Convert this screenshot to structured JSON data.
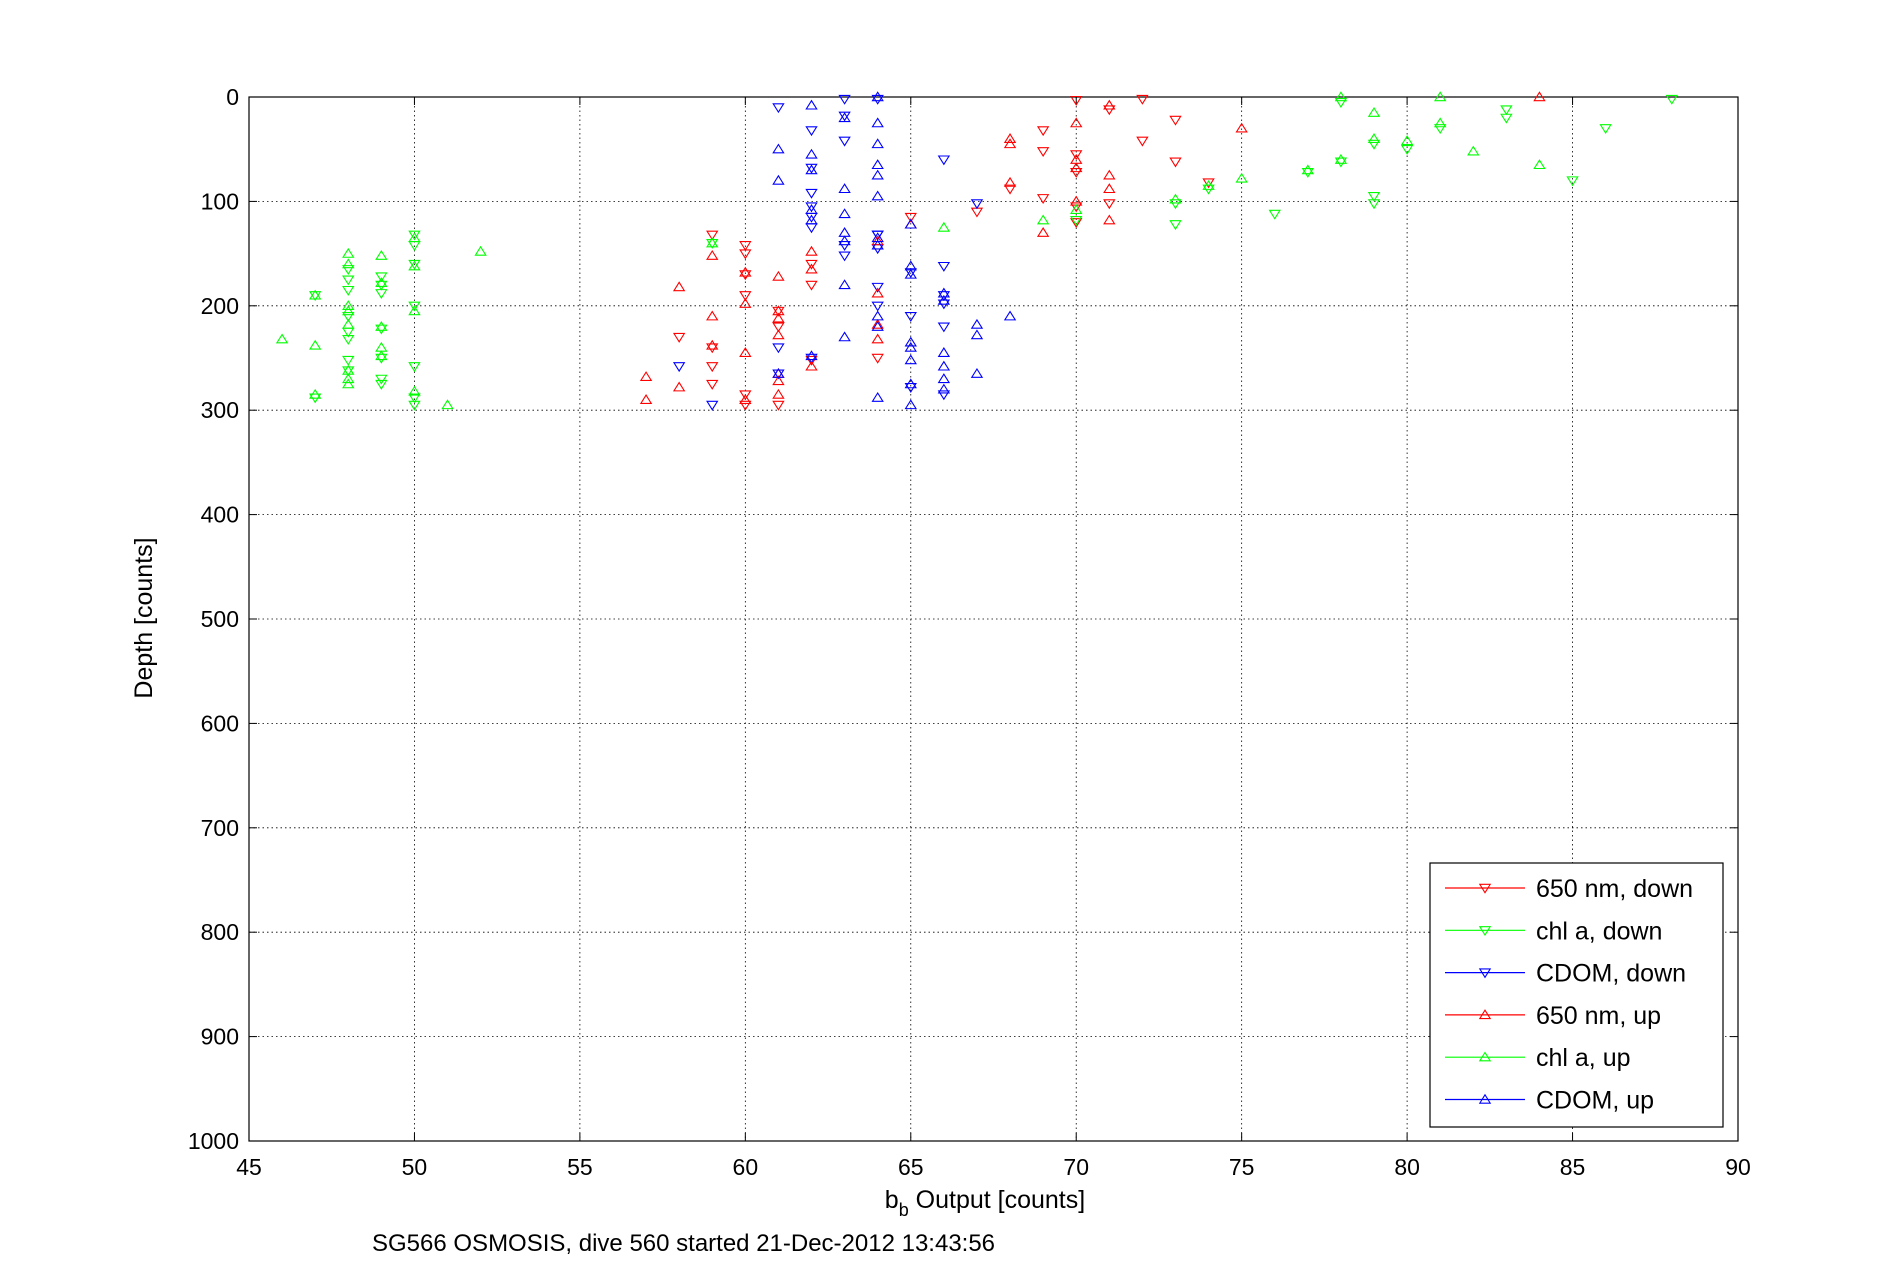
{
  "chart_data": {
    "type": "scatter",
    "title": "",
    "xlabel_main": "b",
    "xlabel_sub": "b",
    "xlabel_rest": " Output [counts]",
    "ylabel": "Depth [counts]",
    "caption": "SG566 OSMOSIS, dive 560 started 21-Dec-2012 13:43:56",
    "xlim": [
      45,
      90
    ],
    "ylim": [
      0,
      1000
    ],
    "y_reversed": true,
    "grid": true,
    "legend_position": "bottom-right",
    "xticks": [
      "45",
      "50",
      "55",
      "60",
      "65",
      "70",
      "75",
      "80",
      "85",
      "90"
    ],
    "yticks": [
      "0",
      "100",
      "200",
      "300",
      "400",
      "500",
      "600",
      "700",
      "800",
      "900",
      "1000"
    ],
    "series": [
      {
        "name": "650 nm, down",
        "color": "#ff0000",
        "marker": "triangle-down",
        "points": [
          [
            72,
            2
          ],
          [
            71,
            12
          ],
          [
            70,
            3
          ],
          [
            73,
            22
          ],
          [
            72,
            42
          ],
          [
            69,
            32
          ],
          [
            73,
            62
          ],
          [
            69,
            52
          ],
          [
            70,
            55
          ],
          [
            70,
            72
          ],
          [
            74,
            82
          ],
          [
            68,
            88
          ],
          [
            69,
            97
          ],
          [
            70,
            105
          ],
          [
            71,
            102
          ],
          [
            67,
            110
          ],
          [
            70,
            120
          ],
          [
            65,
            115
          ],
          [
            59,
            132
          ],
          [
            60,
            142
          ],
          [
            60,
            150
          ],
          [
            62,
            160
          ],
          [
            60,
            170
          ],
          [
            62,
            180
          ],
          [
            60,
            190
          ],
          [
            61,
            205
          ],
          [
            61,
            220
          ],
          [
            59,
            240
          ],
          [
            64,
            250
          ],
          [
            59,
            258
          ],
          [
            59,
            275
          ],
          [
            60,
            285
          ],
          [
            60,
            295
          ],
          [
            61,
            295
          ],
          [
            62,
            252
          ],
          [
            58,
            230
          ]
        ]
      },
      {
        "name": "chl a, down",
        "color": "#00ff00",
        "marker": "triangle-down",
        "points": [
          [
            88,
            2
          ],
          [
            83,
            12
          ],
          [
            83,
            20
          ],
          [
            86,
            30
          ],
          [
            78,
            5
          ],
          [
            81,
            30
          ],
          [
            79,
            45
          ],
          [
            78,
            62
          ],
          [
            80,
            50
          ],
          [
            77,
            72
          ],
          [
            85,
            80
          ],
          [
            74,
            88
          ],
          [
            76,
            112
          ],
          [
            79,
            95
          ],
          [
            79,
            102
          ],
          [
            73,
            102
          ],
          [
            73,
            122
          ],
          [
            70,
            118
          ],
          [
            59,
            140
          ],
          [
            50,
            132
          ],
          [
            50,
            142
          ],
          [
            50,
            160
          ],
          [
            49,
            172
          ],
          [
            49,
            180
          ],
          [
            49,
            188
          ],
          [
            48,
            165
          ],
          [
            48,
            175
          ],
          [
            48,
            185
          ],
          [
            47,
            190
          ],
          [
            48,
            210
          ],
          [
            48,
            225
          ],
          [
            48,
            232
          ],
          [
            49,
            222
          ],
          [
            50,
            200
          ],
          [
            49,
            250
          ],
          [
            49,
            270
          ],
          [
            49,
            275
          ],
          [
            48,
            252
          ],
          [
            48,
            262
          ],
          [
            50,
            258
          ],
          [
            50,
            288
          ],
          [
            50,
            295
          ],
          [
            47,
            288
          ]
        ]
      },
      {
        "name": "CDOM, down",
        "color": "#0000ff",
        "marker": "triangle-down",
        "points": [
          [
            63,
            2
          ],
          [
            64,
            2
          ],
          [
            61,
            10
          ],
          [
            62,
            32
          ],
          [
            63,
            18
          ],
          [
            63,
            42
          ],
          [
            62,
            68
          ],
          [
            66,
            60
          ],
          [
            62,
            92
          ],
          [
            62,
            105
          ],
          [
            62,
            115
          ],
          [
            62,
            125
          ],
          [
            67,
            102
          ],
          [
            64,
            132
          ],
          [
            63,
            142
          ],
          [
            64,
            145
          ],
          [
            63,
            152
          ],
          [
            66,
            162
          ],
          [
            65,
            168
          ],
          [
            66,
            190
          ],
          [
            66,
            198
          ],
          [
            66,
            220
          ],
          [
            64,
            182
          ],
          [
            64,
            200
          ],
          [
            65,
            210
          ],
          [
            61,
            240
          ],
          [
            61,
            265
          ],
          [
            62,
            250
          ],
          [
            58,
            258
          ],
          [
            65,
            278
          ],
          [
            66,
            285
          ],
          [
            59,
            295
          ],
          [
            64,
            132
          ]
        ]
      },
      {
        "name": "650 nm, up",
        "color": "#ff0000",
        "marker": "triangle-up",
        "points": [
          [
            84,
            0
          ],
          [
            71,
            8
          ],
          [
            75,
            30
          ],
          [
            70,
            25
          ],
          [
            68,
            40
          ],
          [
            68,
            45
          ],
          [
            70,
            60
          ],
          [
            70,
            68
          ],
          [
            71,
            75
          ],
          [
            68,
            82
          ],
          [
            71,
            88
          ],
          [
            70,
            100
          ],
          [
            69,
            130
          ],
          [
            71,
            118
          ],
          [
            65,
            122
          ],
          [
            62,
            148
          ],
          [
            60,
            168
          ],
          [
            58,
            182
          ],
          [
            61,
            172
          ],
          [
            60,
            198
          ],
          [
            62,
            165
          ],
          [
            59,
            152
          ],
          [
            59,
            210
          ],
          [
            61,
            205
          ],
          [
            61,
            212
          ],
          [
            61,
            228
          ],
          [
            59,
            238
          ],
          [
            64,
            218
          ],
          [
            64,
            138
          ],
          [
            64,
            188
          ],
          [
            62,
            258
          ],
          [
            60,
            245
          ],
          [
            58,
            278
          ],
          [
            57,
            268
          ],
          [
            57,
            290
          ],
          [
            61,
            265
          ],
          [
            61,
            272
          ],
          [
            61,
            285
          ],
          [
            60,
            290
          ],
          [
            64,
            232
          ]
        ]
      },
      {
        "name": "chl a, up",
        "color": "#00ff00",
        "marker": "triangle-up",
        "points": [
          [
            81,
            0
          ],
          [
            78,
            0
          ],
          [
            79,
            15
          ],
          [
            82,
            52
          ],
          [
            81,
            25
          ],
          [
            80,
            42
          ],
          [
            78,
            60
          ],
          [
            84,
            65
          ],
          [
            75,
            78
          ],
          [
            79,
            40
          ],
          [
            73,
            98
          ],
          [
            77,
            70
          ],
          [
            74,
            85
          ],
          [
            69,
            118
          ],
          [
            70,
            108
          ],
          [
            66,
            125
          ],
          [
            52,
            148
          ],
          [
            59,
            140
          ],
          [
            50,
            135
          ],
          [
            50,
            162
          ],
          [
            48,
            150
          ],
          [
            48,
            160
          ],
          [
            49,
            152
          ],
          [
            49,
            178
          ],
          [
            47,
            190
          ],
          [
            48,
            200
          ],
          [
            48,
            205
          ],
          [
            48,
            218
          ],
          [
            48,
            262
          ],
          [
            48,
            270
          ],
          [
            48,
            275
          ],
          [
            47,
            238
          ],
          [
            46,
            232
          ],
          [
            49,
            220
          ],
          [
            49,
            240
          ],
          [
            49,
            248
          ],
          [
            50,
            205
          ],
          [
            50,
            282
          ],
          [
            51,
            295
          ],
          [
            47,
            285
          ]
        ]
      },
      {
        "name": "CDOM, up",
        "color": "#0000ff",
        "marker": "triangle-up",
        "points": [
          [
            62,
            8
          ],
          [
            64,
            0
          ],
          [
            64,
            25
          ],
          [
            63,
            20
          ],
          [
            61,
            50
          ],
          [
            62,
            55
          ],
          [
            64,
            45
          ],
          [
            64,
            65
          ],
          [
            64,
            75
          ],
          [
            61,
            80
          ],
          [
            63,
            88
          ],
          [
            64,
            95
          ],
          [
            62,
            70
          ],
          [
            62,
            108
          ],
          [
            63,
            112
          ],
          [
            63,
            130
          ],
          [
            63,
            138
          ],
          [
            64,
            142
          ],
          [
            64,
            135
          ],
          [
            63,
            180
          ],
          [
            62,
            118
          ],
          [
            65,
            162
          ],
          [
            65,
            170
          ],
          [
            65,
            122
          ],
          [
            66,
            188
          ],
          [
            66,
            195
          ],
          [
            64,
            220
          ],
          [
            65,
            235
          ],
          [
            65,
            240
          ],
          [
            65,
            252
          ],
          [
            64,
            210
          ],
          [
            66,
            245
          ],
          [
            66,
            258
          ],
          [
            66,
            270
          ],
          [
            65,
            275
          ],
          [
            66,
            280
          ],
          [
            63,
            230
          ],
          [
            64,
            288
          ],
          [
            65,
            295
          ],
          [
            67,
            218
          ],
          [
            67,
            228
          ],
          [
            67,
            265
          ],
          [
            68,
            210
          ],
          [
            62,
            248
          ],
          [
            61,
            265
          ]
        ]
      }
    ]
  }
}
